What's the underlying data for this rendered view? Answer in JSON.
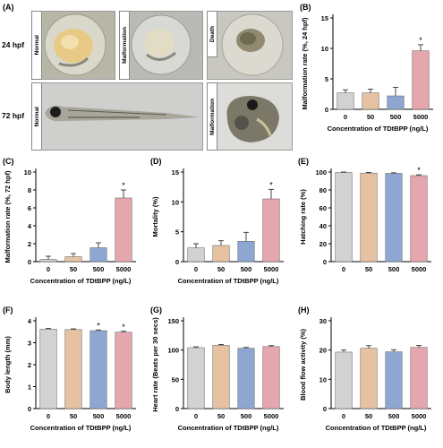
{
  "figure": {
    "panel_a": {
      "label": "(A)",
      "row_labels": [
        "24 hpf",
        "72 hpf"
      ],
      "image_labels": [
        "Normal",
        "Malformation",
        "Death",
        "Normal",
        "Malformation"
      ]
    }
  },
  "colors": [
    "#d2d2d2",
    "#e6c2a2",
    "#8ea7d2",
    "#e6a6ae"
  ],
  "chart_data": [
    {
      "id": "B",
      "type": "bar",
      "panel_label": "(B)",
      "categories": [
        "0",
        "50",
        "500",
        "5000"
      ],
      "values": [
        2.7,
        2.7,
        2.2,
        9.6
      ],
      "errors": [
        0.5,
        0.6,
        1.4,
        1.0
      ],
      "ylabel": "Malformation rate (%, 24 hpf)",
      "xlabel": "Concentration of TDtBPP (ng/L)",
      "ylim": [
        0,
        15
      ],
      "yticks": [
        "0",
        "5",
        "10",
        "15"
      ],
      "significance": [
        "",
        "",
        "",
        "*"
      ]
    },
    {
      "id": "C",
      "type": "bar",
      "panel_label": "(C)",
      "categories": [
        "0",
        "50",
        "500",
        "5000"
      ],
      "values": [
        0.25,
        0.55,
        1.55,
        7.1
      ],
      "errors": [
        0.35,
        0.35,
        0.55,
        0.9
      ],
      "ylabel": "Malformation rate (%, 72 hpf)",
      "xlabel": "Concentration of TDtBPP (ng/L)",
      "ylim": [
        0,
        10
      ],
      "yticks": [
        "0",
        "2",
        "4",
        "6",
        "8",
        "10"
      ],
      "significance": [
        "",
        "",
        "",
        "*"
      ]
    },
    {
      "id": "D",
      "type": "bar",
      "panel_label": "(D)",
      "categories": [
        "0",
        "50",
        "500",
        "5000"
      ],
      "values": [
        2.3,
        2.7,
        3.4,
        10.5
      ],
      "errors": [
        0.7,
        0.8,
        1.5,
        1.6
      ],
      "ylabel": "Mortality (%)",
      "xlabel": "Concentration of TDtBPP (ng/L)",
      "ylim": [
        0,
        15
      ],
      "yticks": [
        "0",
        "5",
        "10",
        "15"
      ],
      "significance": [
        "",
        "",
        "",
        "*"
      ]
    },
    {
      "id": "E",
      "type": "bar",
      "panel_label": "(E)",
      "categories": [
        "0",
        "50",
        "500",
        "5000"
      ],
      "values": [
        99.5,
        98.8,
        98.5,
        96.0
      ],
      "errors": [
        0.5,
        0.7,
        0.6,
        0.9
      ],
      "ylabel": "Hatching rate (%)",
      "xlabel": "",
      "ylim": [
        0,
        100
      ],
      "yticks": [
        "0",
        "20",
        "40",
        "60",
        "80",
        "100"
      ],
      "significance": [
        "",
        "",
        "",
        "*"
      ]
    },
    {
      "id": "F",
      "type": "bar",
      "panel_label": "(F)",
      "categories": [
        "0",
        "50",
        "500",
        "5000"
      ],
      "values": [
        3.62,
        3.6,
        3.55,
        3.48
      ],
      "errors": [
        0.03,
        0.03,
        0.03,
        0.04
      ],
      "ylabel": "Body length (mm)",
      "xlabel": "Concentration of TDtBPP (ng/L)",
      "ylim": [
        0,
        4
      ],
      "yticks": [
        "0",
        "1",
        "2",
        "3",
        "4"
      ],
      "significance": [
        "",
        "",
        "*",
        "*"
      ]
    },
    {
      "id": "G",
      "type": "bar",
      "panel_label": "(G)",
      "categories": [
        "0",
        "50",
        "500",
        "5000"
      ],
      "values": [
        104,
        108,
        103,
        106
      ],
      "errors": [
        1.5,
        1.5,
        1.5,
        1.5
      ],
      "ylabel": "Heart rate (Beats per 30 secs)",
      "xlabel": "Concentration of TDtBPP (ng/L)",
      "ylim": [
        0,
        150
      ],
      "yticks": [
        "0",
        "50",
        "100",
        "150"
      ],
      "significance": [
        "",
        "",
        "",
        ""
      ]
    },
    {
      "id": "H",
      "type": "bar",
      "panel_label": "(H)",
      "categories": [
        "0",
        "50",
        "500",
        "5000"
      ],
      "values": [
        19.3,
        20.6,
        19.4,
        20.9
      ],
      "errors": [
        0.7,
        0.9,
        0.7,
        0.7
      ],
      "ylabel": "Blood flow activity (%)",
      "xlabel": "Concentration of TDtBPP (ng/L)",
      "ylim": [
        0,
        30
      ],
      "yticks": [
        "0",
        "10",
        "20",
        "30"
      ],
      "significance": [
        "",
        "",
        "",
        ""
      ]
    }
  ]
}
